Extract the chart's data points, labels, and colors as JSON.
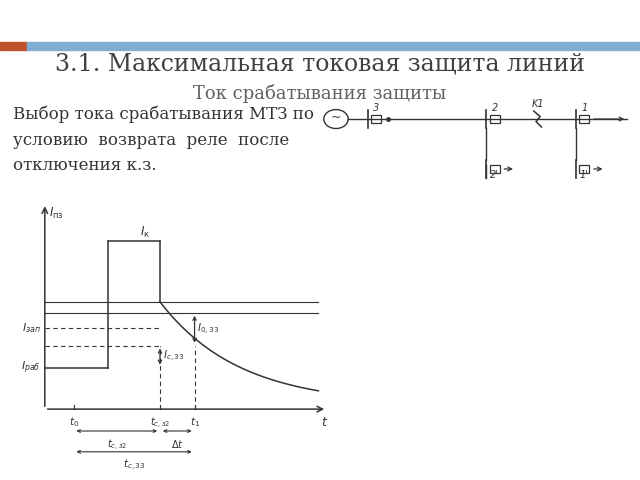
{
  "title": "3.1. Максимальная токовая защита линий",
  "subtitle": "Ток срабатывания защиты",
  "body_text": "Выбор тока срабатывания МТЗ по\nусловию  возврата  реле  после\nотключения к.з.",
  "title_fontsize": 17,
  "subtitle_fontsize": 13,
  "body_fontsize": 12,
  "bg_color": "#ffffff",
  "title_color": "#404040",
  "subtitle_color": "#606060",
  "accent_color_orange": "#c0522a",
  "accent_color_blue": "#7faed4",
  "diagram_color": "#333333"
}
